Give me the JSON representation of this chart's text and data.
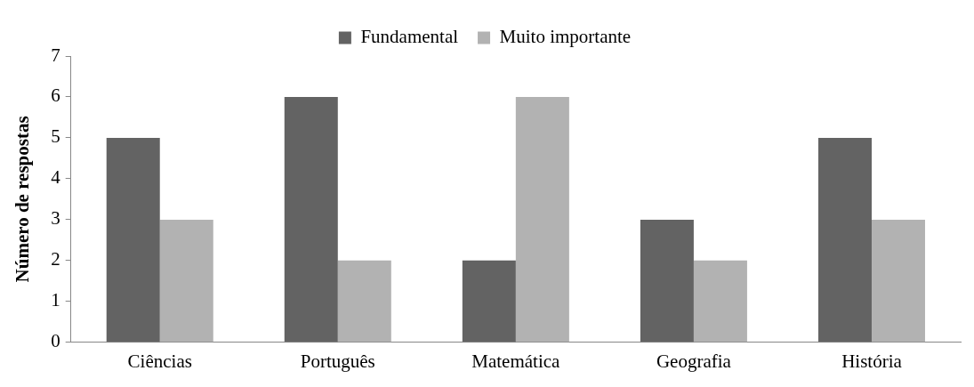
{
  "chart_data": {
    "type": "bar",
    "ylabel": "Número de respostas",
    "categories": [
      "Ciências",
      "Português",
      "Matemática",
      "Geografia",
      "História"
    ],
    "series": [
      {
        "name": "Fundamental",
        "color": "#636363",
        "values": [
          5,
          6,
          2,
          3,
          5
        ]
      },
      {
        "name": "Muito importante",
        "color": "#b2b2b2",
        "values": [
          3,
          2,
          6,
          2,
          3
        ]
      }
    ],
    "ylim": [
      0,
      7
    ],
    "yticks": [
      0,
      1,
      2,
      3,
      4,
      5,
      6,
      7
    ],
    "grid": false,
    "legend": "top"
  }
}
